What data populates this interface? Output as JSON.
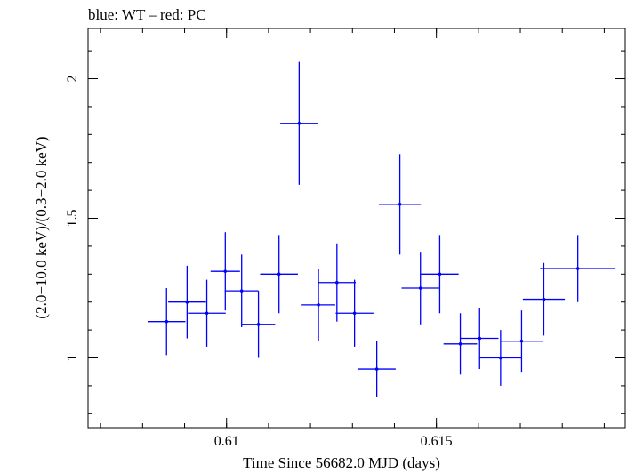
{
  "chart_data": {
    "type": "scatter",
    "title": "blue: WT – red: PC",
    "xlabel": "Time Since 56682.0 MJD (days)",
    "ylabel": "(2.0−10.0 keV)/(0.3−2.0 keV)",
    "xlim": [
      0.6067,
      0.6195
    ],
    "ylim": [
      0.75,
      2.18
    ],
    "x_ticks": [
      {
        "value": 0.61,
        "label": "0.61"
      },
      {
        "value": 0.615,
        "label": "0.615"
      }
    ],
    "y_ticks": [
      {
        "value": 1.0,
        "label": "1"
      },
      {
        "value": 1.5,
        "label": "1.5"
      },
      {
        "value": 2.0,
        "label": "2"
      }
    ],
    "grid": false,
    "series": [
      {
        "color": "#0000ff",
        "points": [
          {
            "x": 0.60857,
            "xerr": 0.00045,
            "y": 1.13,
            "yerr": 0.12
          },
          {
            "x": 0.60906,
            "xerr": 0.00045,
            "y": 1.2,
            "yerr": 0.13
          },
          {
            "x": 0.60953,
            "xerr": 0.00045,
            "y": 1.16,
            "yerr": 0.12
          },
          {
            "x": 0.60997,
            "xerr": 0.00035,
            "y": 1.31,
            "yerr": 0.14
          },
          {
            "x": 0.61036,
            "xerr": 0.0004,
            "y": 1.24,
            "yerr": 0.13
          },
          {
            "x": 0.61076,
            "xerr": 0.0004,
            "y": 1.12,
            "yerr": 0.12
          },
          {
            "x": 0.61125,
            "xerr": 0.00045,
            "y": 1.3,
            "yerr": 0.14
          },
          {
            "x": 0.61173,
            "xerr": 0.00045,
            "y": 1.84,
            "yerr": 0.22
          },
          {
            "x": 0.61219,
            "xerr": 0.0004,
            "y": 1.19,
            "yerr": 0.13
          },
          {
            "x": 0.61263,
            "xerr": 0.00045,
            "y": 1.27,
            "yerr": 0.14
          },
          {
            "x": 0.61305,
            "xerr": 0.00045,
            "y": 1.16,
            "yerr": 0.12
          },
          {
            "x": 0.61358,
            "xerr": 0.00045,
            "y": 0.96,
            "yerr": 0.1
          },
          {
            "x": 0.61413,
            "xerr": 0.0005,
            "y": 1.55,
            "yerr": 0.18
          },
          {
            "x": 0.61462,
            "xerr": 0.00045,
            "y": 1.25,
            "yerr": 0.13
          },
          {
            "x": 0.61508,
            "xerr": 0.00045,
            "y": 1.3,
            "yerr": 0.14
          },
          {
            "x": 0.61557,
            "xerr": 0.0004,
            "y": 1.05,
            "yerr": 0.11
          },
          {
            "x": 0.61603,
            "xerr": 0.00045,
            "y": 1.07,
            "yerr": 0.11
          },
          {
            "x": 0.61653,
            "xerr": 0.0005,
            "y": 1.0,
            "yerr": 0.1
          },
          {
            "x": 0.61703,
            "xerr": 0.0005,
            "y": 1.06,
            "yerr": 0.11
          },
          {
            "x": 0.61756,
            "xerr": 0.0005,
            "y": 1.21,
            "yerr": 0.13
          },
          {
            "x": 0.61837,
            "xerr": 0.0009,
            "y": 1.32,
            "yerr": 0.12
          }
        ]
      }
    ]
  }
}
